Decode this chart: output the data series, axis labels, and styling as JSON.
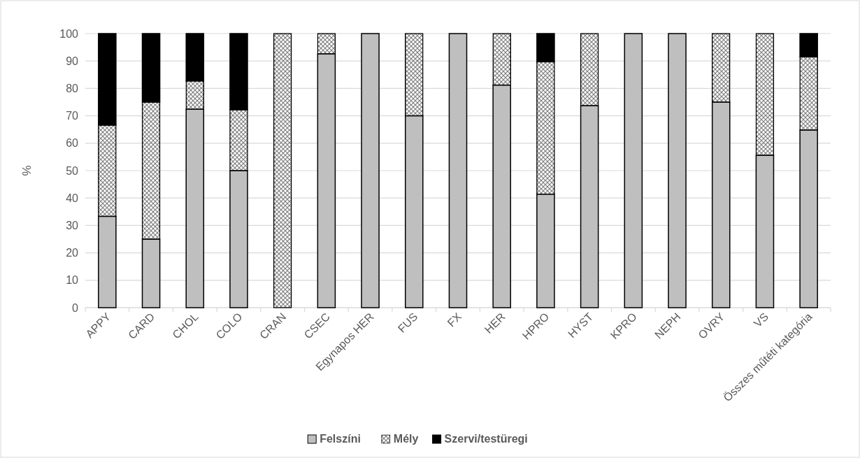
{
  "chart_data": {
    "type": "bar",
    "stacked": true,
    "ylabel": "%",
    "categories": [
      "APPY",
      "CARD",
      "CHOL",
      "COLO",
      "CRAN",
      "CSEC",
      "Egynapos HER",
      "FUS",
      "FX",
      "HER",
      "HPRO",
      "HYST",
      "KPRO",
      "NEPH",
      "OVRY",
      "VS",
      "Összes műtéti kategória"
    ],
    "series": [
      {
        "name": "Felszíni",
        "color": "#bfbfbf",
        "values": [
          33.3,
          25,
          72.4,
          50,
          0,
          92.6,
          100,
          70,
          100,
          81.2,
          41.4,
          73.7,
          100,
          100,
          75,
          55.6,
          64.8
        ]
      },
      {
        "name": "Mély",
        "color": "#7f7f7f",
        "values": [
          33.3,
          50,
          10.3,
          22.2,
          100,
          7.4,
          0,
          30,
          0,
          18.8,
          48.3,
          26.3,
          0,
          0,
          25,
          44.4,
          26.7
        ]
      },
      {
        "name": "Szervi/testüregi",
        "color": "#000000",
        "values": [
          33.4,
          25,
          17.3,
          27.8,
          0,
          0,
          0,
          0,
          0,
          0,
          10.3,
          0,
          0,
          0,
          0,
          0,
          8.5
        ]
      }
    ],
    "ylim": [
      0,
      100
    ],
    "yticks": [
      0,
      10,
      20,
      30,
      40,
      50,
      60,
      70,
      80,
      90,
      100
    ],
    "grid": "y",
    "legend": "bottom"
  }
}
